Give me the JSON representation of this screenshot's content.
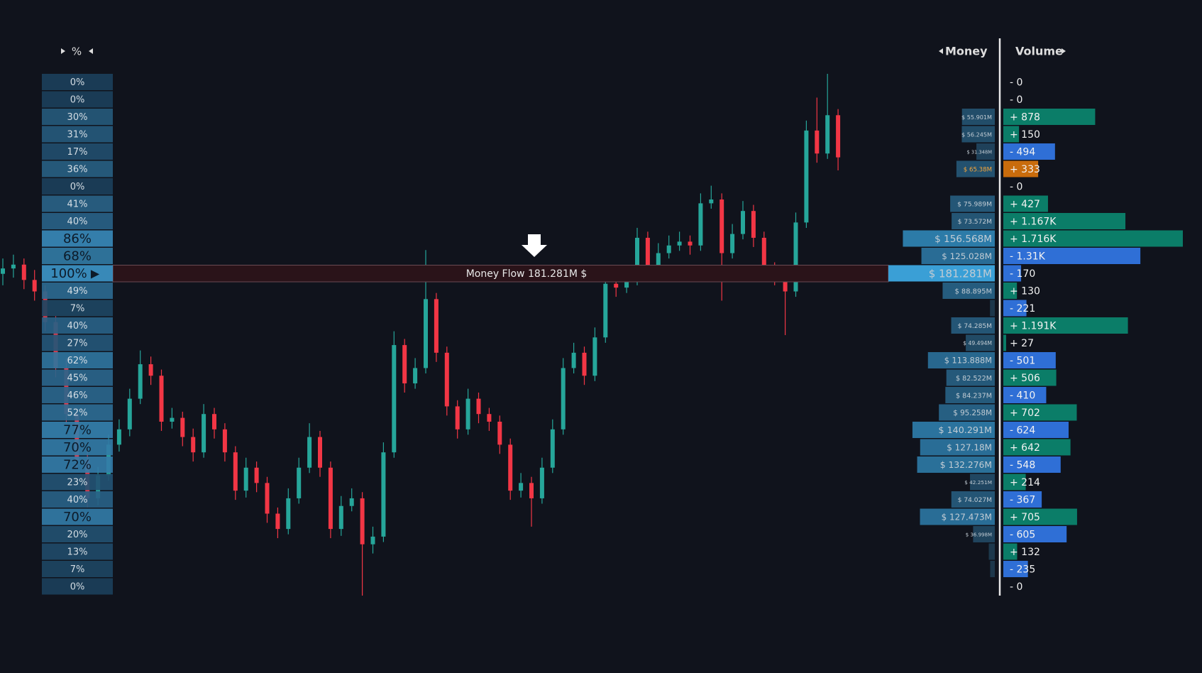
{
  "percent_header": "%",
  "money_header": "Money",
  "volume_header": "Volume",
  "money_flow_label": "Money Flow 181.281M $",
  "poc_marker": "▶",
  "poc_row": 11,
  "highlight_row": 5,
  "colors": {
    "up": "#0b7d68",
    "down": "#2f6fd6",
    "highlight": "#c96c0c",
    "candle_up": "#26a69a",
    "candle_down": "#f23645"
  },
  "rows": {
    "percent": [
      0,
      0,
      30,
      31,
      17,
      36,
      0,
      41,
      40,
      86,
      68,
      100,
      49,
      7,
      40,
      27,
      62,
      45,
      46,
      52,
      77,
      70,
      72,
      23,
      40,
      70,
      20,
      13,
      7,
      0
    ],
    "percent_labels": [
      "0%",
      "0%",
      "30%",
      "31%",
      "17%",
      "36%",
      "0%",
      "41%",
      "40%",
      "86%",
      "68%",
      "100%",
      "49%",
      "7%",
      "40%",
      "27%",
      "62%",
      "45%",
      "46%",
      "52%",
      "77%",
      "70%",
      "72%",
      "23%",
      "40%",
      "70%",
      "20%",
      "13%",
      "7%",
      "0%"
    ],
    "money": [
      0,
      0,
      55.901,
      56.245,
      31.348,
      65.38,
      0,
      75.989,
      73.572,
      156.568,
      125.028,
      181.281,
      88.895,
      8.2,
      74.285,
      49.494,
      113.888,
      82.522,
      84.237,
      95.258,
      140.291,
      127.18,
      132.276,
      42.251,
      74.027,
      127.473,
      36.998,
      10.3,
      7.9,
      0
    ],
    "money_labels": [
      null,
      null,
      "$ 55.901M",
      "$ 56.245M",
      "$ 31.348M",
      "$ 65.38M",
      null,
      "$ 75.989M",
      "$ 73.572M",
      "$ 156.568M",
      "$ 125.028M",
      "$ 181.281M",
      "$ 88.895M",
      null,
      "$ 74.285M",
      "$ 49.494M",
      "$ 113.888M",
      "$ 82.522M",
      "$ 84.237M",
      "$ 95.258M",
      "$ 140.291M",
      "$ 127.18M",
      "$ 132.276M",
      "$ 42.251M",
      "$ 74.027M",
      "$ 127.473M",
      "$ 36.998M",
      null,
      null,
      null
    ],
    "volume": [
      0,
      0,
      878,
      150,
      -494,
      333,
      0,
      427,
      1167,
      1716,
      -1310,
      -170,
      130,
      -221,
      1191,
      27,
      -501,
      506,
      -410,
      702,
      -624,
      642,
      -548,
      214,
      -367,
      705,
      -605,
      132,
      -235,
      0
    ],
    "volume_labels": [
      "- 0",
      "- 0",
      "+ 878",
      "+ 150",
      "- 494",
      "+ 333",
      "- 0",
      "+ 427",
      "+ 1.167K",
      "+ 1.716K",
      "- 1.31K",
      "- 170",
      "+ 130",
      "- 221",
      "+ 1.191K",
      "+ 27",
      "- 501",
      "+ 506",
      "- 410",
      "+ 702",
      "- 624",
      "+ 642",
      "- 548",
      "+ 214",
      "- 367",
      "+ 705",
      "- 605",
      "+ 132",
      "- 235",
      "- 0"
    ]
  },
  "candles": [
    [
      520,
      540,
      505,
      527
    ],
    [
      527,
      545,
      515,
      532
    ],
    [
      532,
      540,
      500,
      512
    ],
    [
      512,
      525,
      485,
      497
    ],
    [
      497,
      505,
      445,
      457
    ],
    [
      457,
      465,
      385,
      397
    ],
    [
      397,
      410,
      325,
      337
    ],
    [
      337,
      345,
      265,
      277
    ],
    [
      277,
      290,
      215,
      227
    ],
    [
      227,
      268,
      218,
      257
    ],
    [
      257,
      310,
      250,
      297
    ],
    [
      297,
      330,
      288,
      317
    ],
    [
      317,
      370,
      308,
      357
    ],
    [
      357,
      420,
      350,
      402
    ],
    [
      402,
      412,
      375,
      387
    ],
    [
      387,
      395,
      315,
      327
    ],
    [
      327,
      345,
      318,
      332
    ],
    [
      332,
      340,
      295,
      307
    ],
    [
      307,
      318,
      275,
      287
    ],
    [
      287,
      350,
      280,
      337
    ],
    [
      337,
      345,
      305,
      317
    ],
    [
      317,
      325,
      275,
      287
    ],
    [
      287,
      295,
      225,
      237
    ],
    [
      237,
      280,
      228,
      267
    ],
    [
      267,
      275,
      235,
      247
    ],
    [
      247,
      255,
      195,
      207
    ],
    [
      207,
      215,
      175,
      187
    ],
    [
      187,
      240,
      180,
      227
    ],
    [
      227,
      280,
      220,
      267
    ],
    [
      267,
      325,
      260,
      307
    ],
    [
      307,
      315,
      255,
      267
    ],
    [
      267,
      275,
      175,
      187
    ],
    [
      187,
      230,
      178,
      217
    ],
    [
      217,
      240,
      210,
      227
    ],
    [
      227,
      235,
      100,
      167
    ],
    [
      167,
      190,
      155,
      177
    ],
    [
      177,
      300,
      170,
      287
    ],
    [
      287,
      445,
      280,
      427
    ],
    [
      427,
      435,
      365,
      377
    ],
    [
      377,
      410,
      370,
      397
    ],
    [
      397,
      551,
      390,
      487
    ],
    [
      487,
      495,
      405,
      417
    ],
    [
      417,
      425,
      335,
      347
    ],
    [
      347,
      355,
      305,
      317
    ],
    [
      317,
      370,
      310,
      357
    ],
    [
      357,
      365,
      325,
      337
    ],
    [
      337,
      345,
      315,
      327
    ],
    [
      327,
      335,
      285,
      297
    ],
    [
      297,
      305,
      225,
      237
    ],
    [
      237,
      260,
      228,
      247
    ],
    [
      247,
      255,
      190,
      227
    ],
    [
      227,
      280,
      220,
      267
    ],
    [
      267,
      330,
      260,
      317
    ],
    [
      317,
      410,
      310,
      397
    ],
    [
      397,
      430,
      390,
      417
    ],
    [
      417,
      425,
      375,
      387
    ],
    [
      387,
      450,
      380,
      437
    ],
    [
      437,
      520,
      430,
      507
    ],
    [
      507,
      515,
      490,
      502
    ],
    [
      502,
      525,
      495,
      512
    ],
    [
      512,
      580,
      505,
      567
    ],
    [
      567,
      575,
      515,
      527
    ],
    [
      527,
      560,
      520,
      547
    ],
    [
      547,
      570,
      540,
      557
    ],
    [
      557,
      575,
      550,
      562
    ],
    [
      562,
      570,
      545,
      557
    ],
    [
      557,
      625,
      550,
      612
    ],
    [
      612,
      635,
      605,
      617
    ],
    [
      617,
      625,
      485,
      547
    ],
    [
      547,
      585,
      540,
      572
    ],
    [
      572,
      615,
      565,
      602
    ],
    [
      602,
      610,
      555,
      567
    ],
    [
      567,
      575,
      515,
      527
    ],
    [
      527,
      535,
      505,
      517
    ],
    [
      517,
      525,
      440,
      497
    ],
    [
      497,
      600,
      490,
      587
    ],
    [
      587,
      720,
      580,
      707
    ],
    [
      707,
      750,
      665,
      677
    ],
    [
      677,
      781,
      670,
      727
    ],
    [
      727,
      735,
      655,
      672
    ]
  ]
}
